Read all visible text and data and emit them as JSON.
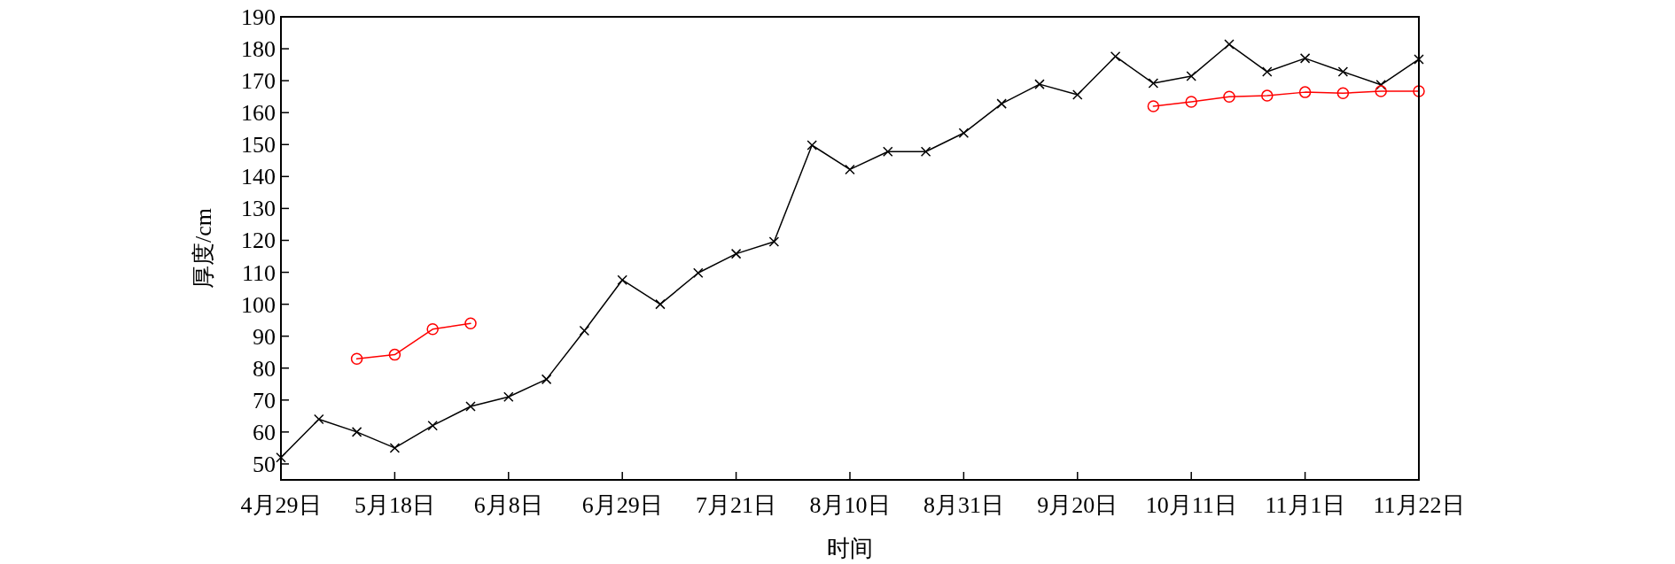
{
  "chart_data": {
    "type": "line",
    "xlabel": "时间",
    "ylabel": "厚度/cm",
    "categories": [
      "4月29日",
      null,
      null,
      "5月18日",
      null,
      null,
      "6月8日",
      null,
      null,
      "6月29日",
      null,
      null,
      "7月21日",
      null,
      null,
      "8月10日",
      null,
      null,
      "8月31日",
      null,
      null,
      "9月20日",
      null,
      null,
      "10月11日",
      null,
      null,
      "11月1日",
      null,
      null,
      "11月22日"
    ],
    "series": [
      {
        "color": "#000000",
        "marker": "cross",
        "values": [
          52,
          64,
          60,
          55,
          62,
          68,
          71,
          76.5,
          91.7,
          107.6,
          100,
          109.8,
          115.8,
          119.6,
          149.8,
          142.2,
          147.8,
          147.8,
          153.6,
          162.8,
          168.9,
          165.6,
          177.6,
          169.2,
          171.4,
          181.4,
          172.8,
          177,
          172.8,
          168.7,
          176.7
        ]
      },
      {
        "color": "#ff0000",
        "marker": "circle",
        "values": [
          null,
          null,
          82.9,
          84.2,
          92.2,
          94,
          null,
          null,
          null,
          null,
          null,
          null,
          null,
          null,
          null,
          null,
          null,
          null,
          null,
          null,
          null,
          null,
          null,
          162,
          163.4,
          165,
          165.3,
          166.4,
          166.1,
          166.7,
          166.7
        ]
      }
    ],
    "ylim": [
      45,
      190
    ],
    "yticks": [
      50,
      60,
      70,
      80,
      90,
      100,
      110,
      120,
      130,
      140,
      150,
      160,
      170,
      180,
      190
    ],
    "grid": false,
    "line_style": "solid"
  }
}
